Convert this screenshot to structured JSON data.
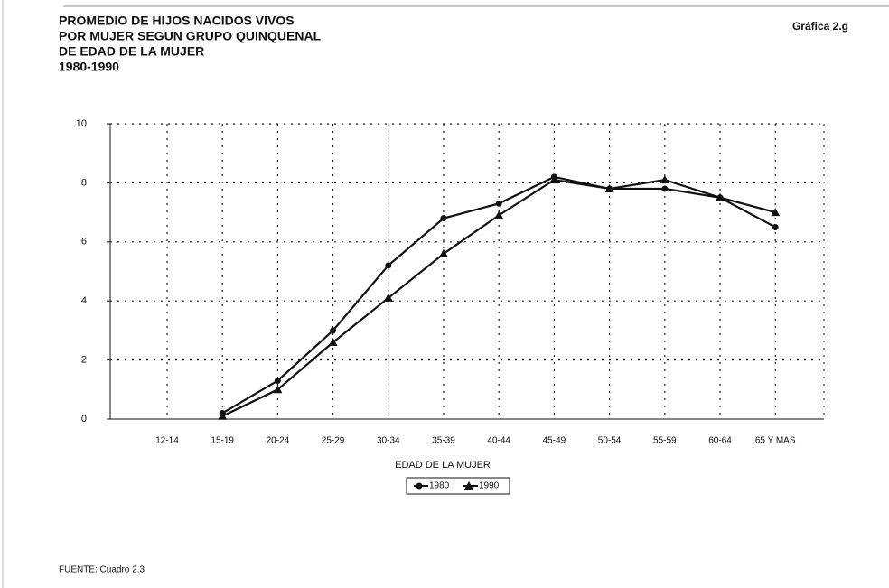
{
  "chart_data": {
    "type": "line",
    "title": [
      "PROMEDIO DE HIJOS NACIDOS VIVOS",
      "POR MUJER SEGUN GRUPO QUINQUENAL",
      "DE EDAD DE LA MUJER",
      "1980-1990"
    ],
    "figure_label": "Gráfica 2.g",
    "x_label": "EDAD DE LA MUJER",
    "source": "FUENTE: Cuadro 2.3",
    "categories": [
      "12-14",
      "15-19",
      "20-24",
      "25-29",
      "30-34",
      "35-39",
      "40-44",
      "45-49",
      "50-54",
      "55-59",
      "60-64",
      "65 Y MAS"
    ],
    "series": [
      {
        "name": "1980",
        "color": "#111111",
        "marker": "circle",
        "values": [
          null,
          0.2,
          1.3,
          3.0,
          5.2,
          6.8,
          7.3,
          8.2,
          7.8,
          7.8,
          7.5,
          6.5
        ]
      },
      {
        "name": "1990",
        "color": "#111111",
        "marker": "triangle",
        "values": [
          null,
          0.1,
          1.0,
          2.6,
          4.1,
          5.6,
          6.9,
          8.1,
          7.8,
          8.1,
          7.5,
          7.0
        ]
      }
    ],
    "ylim": [
      0,
      10
    ],
    "yticks": [
      0,
      2,
      4,
      6,
      8,
      10
    ],
    "grid": true,
    "legend": "bottom"
  }
}
